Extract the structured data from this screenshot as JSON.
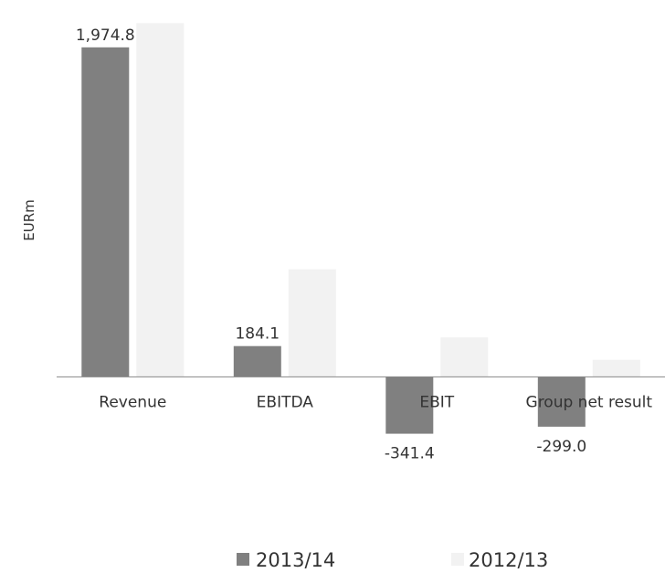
{
  "chart_data": {
    "type": "bar",
    "categories": [
      "Revenue",
      "EBITDA",
      "EBIT",
      "Group net result"
    ],
    "series": [
      {
        "name": "2013/14",
        "values": [
          1974.8,
          184.1,
          -341.4,
          -299.0
        ],
        "color": "#808080"
      },
      {
        "name": "2012/13",
        "values": [
          2120,
          645,
          236,
          102
        ],
        "color": "#f2f2f2"
      }
    ],
    "data_labels": [
      "1,974.8",
      "184.1",
      "-341.4",
      "-299.0"
    ],
    "ylabel": "EURm",
    "ylim": [
      -420,
      2160
    ],
    "grid": false,
    "legend": "bottom"
  }
}
